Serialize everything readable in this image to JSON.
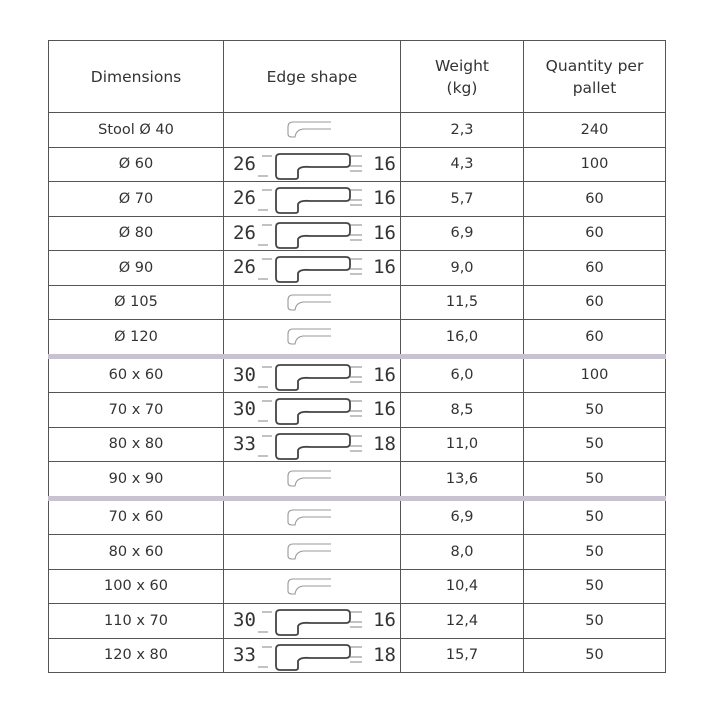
{
  "headers": [
    "Dimensions",
    "Edge shape",
    "Weight\n(kg)",
    "Quantity per\npallet"
  ],
  "header_lines": {
    "weight": [
      "Weight",
      "(kg)"
    ],
    "qty": [
      "Quantity per",
      "pallet"
    ]
  },
  "rows": [
    {
      "dim": "Stool Ø 40",
      "left": "",
      "right": "",
      "weight": "2,3",
      "qty": "240"
    },
    {
      "dim": "Ø 60",
      "left": "26",
      "right": "16",
      "weight": "4,3",
      "qty": "100"
    },
    {
      "dim": "Ø 70",
      "left": "26",
      "right": "16",
      "weight": "5,7",
      "qty": "60"
    },
    {
      "dim": "Ø 80",
      "left": "26",
      "right": "16",
      "weight": "6,9",
      "qty": "60"
    },
    {
      "dim": "Ø 90",
      "left": "26",
      "right": "16",
      "weight": "9,0",
      "qty": "60"
    },
    {
      "dim": "Ø 105",
      "left": "",
      "right": "",
      "weight": "11,5",
      "qty": "60"
    },
    {
      "dim": "Ø 120",
      "left": "",
      "right": "",
      "weight": "16,0",
      "qty": "60"
    },
    {
      "dim": "60 x 60",
      "left": "30",
      "right": "16",
      "weight": "6,0",
      "qty": "100"
    },
    {
      "dim": "70 x 70",
      "left": "30",
      "right": "16",
      "weight": "8,5",
      "qty": "50"
    },
    {
      "dim": "80 x 80",
      "left": "33",
      "right": "18",
      "weight": "11,0",
      "qty": "50"
    },
    {
      "dim": "90 x 90",
      "left": "",
      "right": "",
      "weight": "13,6",
      "qty": "50"
    },
    {
      "dim": "70 x 60",
      "left": "",
      "right": "",
      "weight": "6,9",
      "qty": "50"
    },
    {
      "dim": "80 x 60",
      "left": "",
      "right": "",
      "weight": "8,0",
      "qty": "50"
    },
    {
      "dim": "100 x 60",
      "left": "",
      "right": "",
      "weight": "10,4",
      "qty": "50"
    },
    {
      "dim": "110 x 70",
      "left": "30",
      "right": "16",
      "weight": "12,4",
      "qty": "50"
    },
    {
      "dim": "120 x 80",
      "left": "33",
      "right": "18",
      "weight": "15,7",
      "qty": "50"
    }
  ],
  "separator_after_rows": [
    7,
    11
  ],
  "separator_color": "#c8c2d2"
}
